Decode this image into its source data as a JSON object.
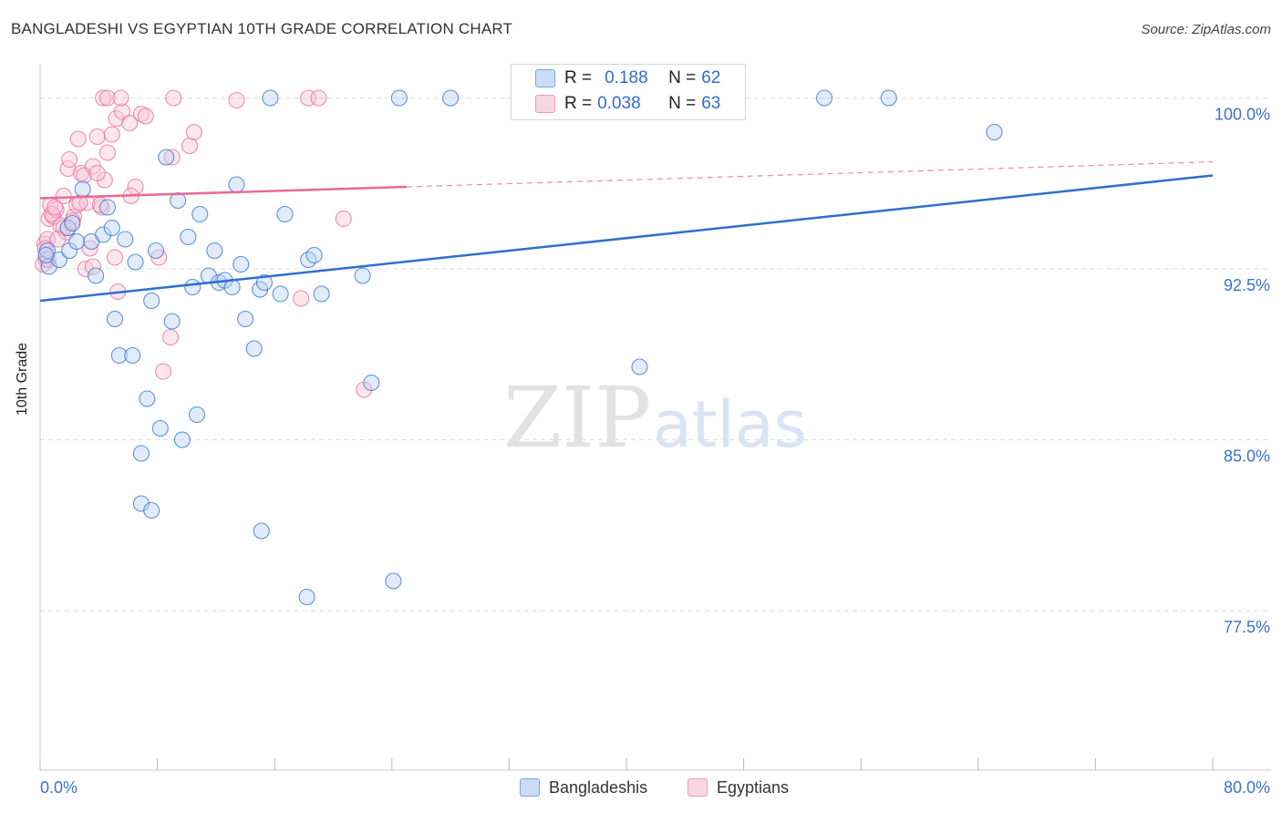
{
  "header": {
    "title": "BANGLADESHI VS EGYPTIAN 10TH GRADE CORRELATION CHART",
    "source": "Source: ZipAtlas.com"
  },
  "watermark": {
    "zip": "ZIP",
    "atlas": "atlas"
  },
  "legend": {
    "r_label": "R =",
    "n_label": "N =",
    "rows": [
      {
        "name": "Bangladeshis",
        "r": "0.188",
        "n": "62",
        "color": "#7aa7e8"
      },
      {
        "name": "Egyptians",
        "r": "0.038",
        "n": "63",
        "color": "#ee9ab8"
      }
    ]
  },
  "colors": {
    "blue": "#2e6fd0",
    "blue_fill": "#bcd2f3",
    "pink": "#e8699a",
    "pink_fill": "#f8c7d8",
    "axis_text": "#3d72c9",
    "grid": "#dddddd"
  },
  "chart_data": {
    "type": "scatter",
    "title": "BANGLADESHI VS EGYPTIAN 10TH GRADE CORRELATION CHART",
    "xlabel": "",
    "ylabel": "10th Grade",
    "xlim": [
      0,
      80
    ],
    "ylim": [
      70.5,
      101.5
    ],
    "x_tick_labels": [
      "0.0%",
      "80.0%"
    ],
    "y_ticks": [
      77.5,
      85.0,
      92.5,
      100.0
    ],
    "y_tick_labels": [
      "77.5%",
      "85.0%",
      "92.5%",
      "100.0%"
    ],
    "legend_position": "top-center",
    "series": [
      {
        "name": "Bangladeshis",
        "r": 0.188,
        "n": 62,
        "trend": {
          "x": [
            0,
            80
          ],
          "y": [
            91.1,
            96.6
          ],
          "style": "solid"
        },
        "points": [
          [
            0.5,
            93.3
          ],
          [
            0.6,
            92.6
          ],
          [
            1.3,
            92.9
          ],
          [
            1.9,
            94.3
          ],
          [
            2.0,
            93.3
          ],
          [
            2.2,
            94.5
          ],
          [
            2.5,
            93.7
          ],
          [
            2.9,
            96.0
          ],
          [
            3.5,
            93.7
          ],
          [
            3.8,
            92.2
          ],
          [
            4.3,
            94.0
          ],
          [
            4.6,
            95.2
          ],
          [
            4.9,
            94.3
          ],
          [
            5.1,
            90.3
          ],
          [
            5.4,
            88.7
          ],
          [
            5.8,
            93.8
          ],
          [
            6.3,
            88.7
          ],
          [
            6.5,
            92.8
          ],
          [
            6.9,
            84.4
          ],
          [
            7.3,
            86.8
          ],
          [
            7.6,
            91.1
          ],
          [
            7.9,
            93.3
          ],
          [
            8.2,
            85.5
          ],
          [
            8.6,
            97.4
          ],
          [
            9.0,
            90.2
          ],
          [
            9.4,
            95.5
          ],
          [
            9.7,
            85.0
          ],
          [
            10.1,
            93.9
          ],
          [
            10.4,
            91.7
          ],
          [
            10.7,
            86.1
          ],
          [
            10.9,
            94.9
          ],
          [
            11.5,
            92.2
          ],
          [
            11.9,
            93.3
          ],
          [
            12.2,
            91.9
          ],
          [
            12.6,
            92.0
          ],
          [
            13.1,
            91.7
          ],
          [
            13.4,
            96.2
          ],
          [
            13.7,
            92.7
          ],
          [
            14.0,
            90.3
          ],
          [
            14.6,
            89.0
          ],
          [
            15.0,
            91.6
          ],
          [
            15.3,
            91.9
          ],
          [
            16.4,
            91.4
          ],
          [
            16.7,
            94.9
          ],
          [
            18.3,
            92.9
          ],
          [
            18.7,
            93.1
          ],
          [
            19.2,
            91.4
          ],
          [
            15.1,
            81.0
          ],
          [
            18.2,
            78.1
          ],
          [
            6.9,
            82.2
          ],
          [
            7.6,
            81.9
          ],
          [
            22.0,
            92.2
          ],
          [
            22.6,
            87.5
          ],
          [
            24.1,
            78.8
          ],
          [
            40.9,
            88.2
          ],
          [
            15.7,
            100.0
          ],
          [
            24.5,
            100.0
          ],
          [
            28.0,
            100.0
          ],
          [
            53.5,
            100.0
          ],
          [
            57.9,
            100.0
          ],
          [
            65.1,
            98.5
          ],
          [
            0.4,
            93.1
          ]
        ]
      },
      {
        "name": "Egyptians",
        "r": 0.038,
        "n": 63,
        "trend": {
          "x": [
            0,
            25
          ],
          "y": [
            95.6,
            96.1
          ],
          "style": "solid",
          "extension": {
            "x": [
              25,
              80
            ],
            "y": [
              96.1,
              97.2
            ],
            "style": "dashed"
          }
        },
        "points": [
          [
            0.3,
            93.6
          ],
          [
            0.4,
            92.9
          ],
          [
            0.5,
            93.8
          ],
          [
            0.6,
            94.7
          ],
          [
            0.7,
            95.3
          ],
          [
            0.9,
            94.8
          ],
          [
            1.1,
            95.1
          ],
          [
            1.4,
            94.4
          ],
          [
            1.6,
            95.7
          ],
          [
            1.8,
            94.1
          ],
          [
            1.9,
            96.9
          ],
          [
            2.0,
            97.3
          ],
          [
            2.3,
            94.8
          ],
          [
            2.5,
            95.3
          ],
          [
            2.6,
            98.2
          ],
          [
            2.8,
            96.7
          ],
          [
            3.0,
            96.6
          ],
          [
            3.2,
            95.4
          ],
          [
            3.4,
            93.4
          ],
          [
            3.6,
            97.0
          ],
          [
            3.9,
            98.3
          ],
          [
            4.2,
            95.2
          ],
          [
            4.4,
            96.4
          ],
          [
            4.6,
            97.6
          ],
          [
            4.9,
            98.4
          ],
          [
            5.2,
            99.1
          ],
          [
            5.6,
            99.4
          ],
          [
            6.1,
            98.9
          ],
          [
            6.5,
            96.1
          ],
          [
            6.9,
            99.3
          ],
          [
            7.2,
            99.2
          ],
          [
            8.1,
            93.0
          ],
          [
            8.4,
            88.0
          ],
          [
            8.9,
            89.5
          ],
          [
            9.0,
            97.4
          ],
          [
            10.2,
            97.9
          ],
          [
            10.5,
            98.5
          ],
          [
            3.1,
            92.5
          ],
          [
            3.6,
            92.6
          ],
          [
            4.1,
            95.3
          ],
          [
            5.1,
            93.0
          ],
          [
            5.3,
            91.5
          ],
          [
            6.2,
            95.7
          ],
          [
            17.8,
            91.2
          ],
          [
            20.7,
            94.7
          ],
          [
            22.1,
            87.2
          ],
          [
            4.3,
            100.0
          ],
          [
            4.6,
            100.0
          ],
          [
            5.5,
            100.0
          ],
          [
            9.1,
            100.0
          ],
          [
            13.4,
            99.9
          ],
          [
            18.3,
            100.0
          ],
          [
            19.0,
            100.0
          ],
          [
            1.6,
            94.3
          ],
          [
            2.2,
            94.6
          ],
          [
            0.8,
            94.9
          ],
          [
            1.2,
            93.8
          ],
          [
            0.2,
            92.7
          ],
          [
            0.35,
            93.4
          ],
          [
            0.55,
            92.9
          ],
          [
            3.9,
            96.7
          ],
          [
            2.7,
            95.4
          ],
          [
            1.0,
            95.2
          ]
        ]
      }
    ]
  }
}
